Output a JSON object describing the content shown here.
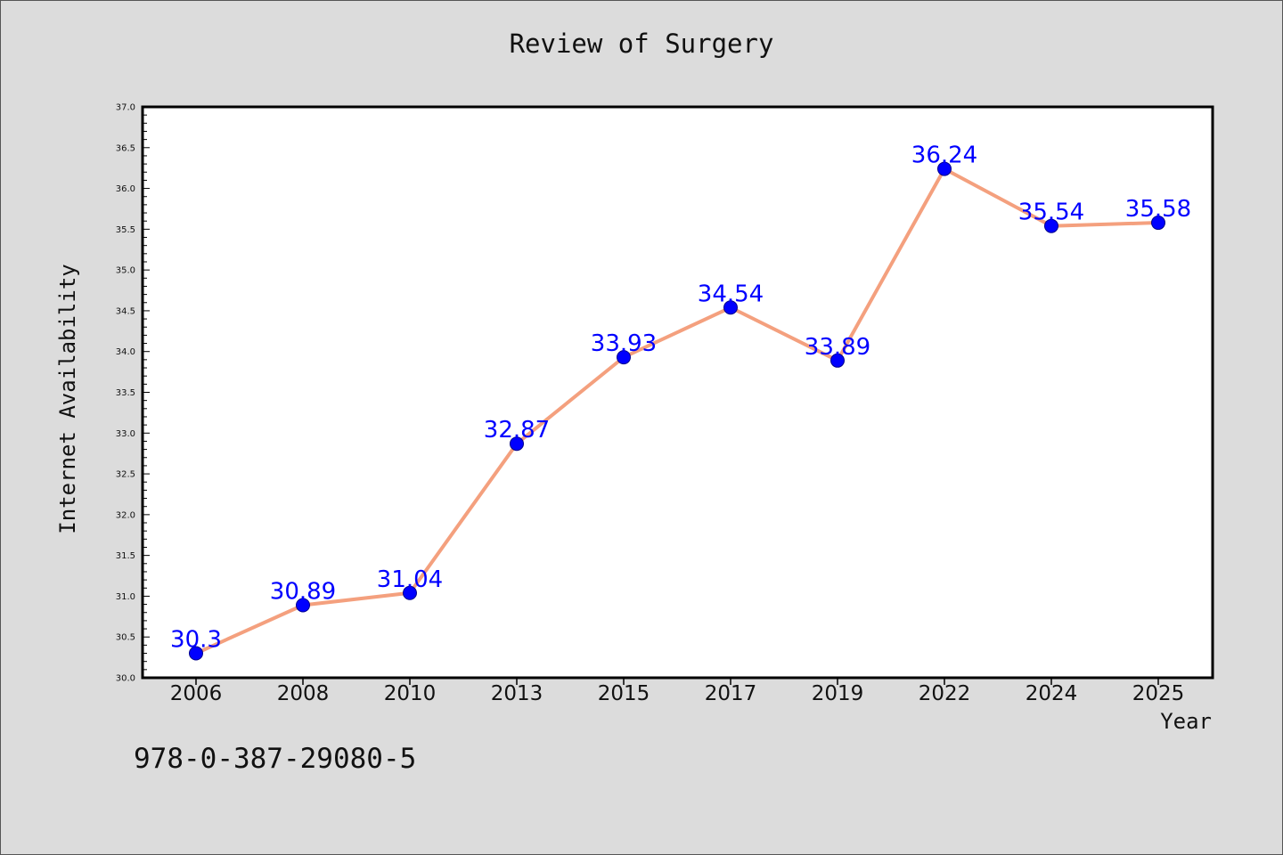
{
  "chart_data": {
    "type": "line",
    "title": "Review of Surgery",
    "xlabel": "Year",
    "ylabel": "Internet Availability",
    "categories": [
      "2006",
      "2008",
      "2010",
      "2013",
      "2015",
      "2017",
      "2019",
      "2022",
      "2024",
      "2025"
    ],
    "series": [
      {
        "values": [
          30.3,
          30.89,
          31.04,
          32.87,
          33.93,
          34.54,
          33.89,
          36.24,
          35.54,
          35.58
        ],
        "labels": [
          "30.3",
          "30.89",
          "31.04",
          "32.87",
          "33.93",
          "34.54",
          "33.89",
          "36.24",
          "35.54",
          "35.58"
        ]
      }
    ],
    "ylim": [
      30.0,
      37.0
    ],
    "yticks": [
      "30.0",
      "30.5",
      "31.0",
      "31.5",
      "32.0",
      "32.5",
      "33.0",
      "33.5",
      "34.0",
      "34.5",
      "35.0",
      "35.5",
      "36.0",
      "36.5",
      "37.0"
    ],
    "grid": false,
    "legend": "none",
    "colors": {
      "line": "#f4a07e",
      "marker": "#0000ff",
      "label": "#0000ff",
      "background": "#dcdcdc",
      "plot_area": "#ffffff"
    }
  },
  "footer": {
    "isbn": "978-0-387-29080-5"
  }
}
